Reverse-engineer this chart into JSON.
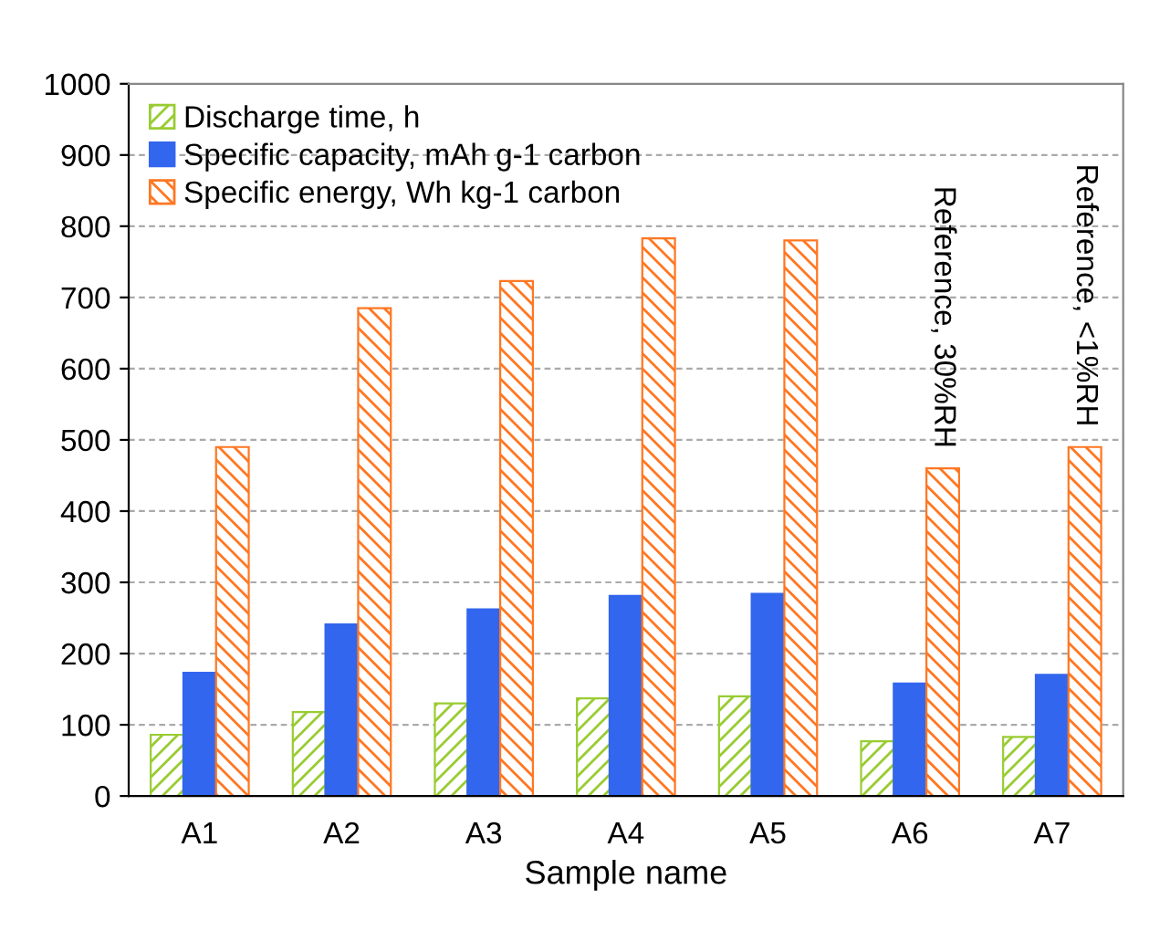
{
  "chart_data": {
    "type": "bar",
    "xlabel": "Sample name",
    "categories": [
      "A1",
      "A2",
      "A3",
      "A4",
      "A5",
      "A6",
      "A7"
    ],
    "series": [
      {
        "name": "Discharge time, h",
        "color": "#99cc33",
        "values": [
          86,
          118,
          130,
          137,
          140,
          77,
          83
        ]
      },
      {
        "name": "Specific capacity, mAh g-1 carbon",
        "color": "#3366ee",
        "values": [
          173,
          241,
          262,
          281,
          284,
          158,
          170
        ]
      },
      {
        "name": "Specific energy, Wh kg-1 carbon",
        "color": "#ff7722",
        "values": [
          490,
          685,
          723,
          783,
          780,
          460,
          490
        ]
      }
    ],
    "ylim": [
      0,
      1000
    ],
    "yticks": [
      0,
      100,
      200,
      300,
      400,
      500,
      600,
      700,
      800,
      900,
      1000
    ],
    "grid": "y",
    "legend": "top left",
    "annotations": [
      "Reference, 30%RH",
      "Reference, <1%RH"
    ]
  }
}
